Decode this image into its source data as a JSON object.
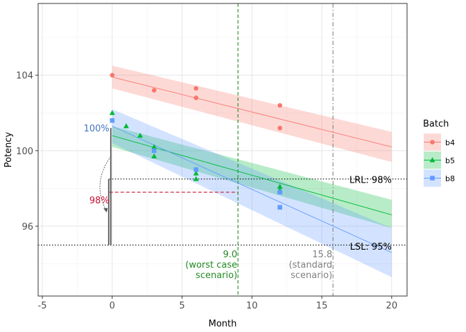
{
  "chart_data": {
    "type": "scatter",
    "xlabel": "Month",
    "ylabel": "Potency",
    "xlim": [
      -5.3,
      21.1
    ],
    "ylim": [
      92.3,
      107.8
    ],
    "x_ticks": [
      -5,
      0,
      5,
      10,
      15,
      20
    ],
    "y_ticks": [
      96,
      100,
      104
    ],
    "grid": true,
    "legend": {
      "title": "Batch",
      "position": "right"
    },
    "series": [
      {
        "name": "b4",
        "color": "#F8766D",
        "marker": "circle",
        "points": [
          [
            0,
            104.0
          ],
          [
            3,
            103.2
          ],
          [
            6,
            103.3
          ],
          [
            6,
            102.8
          ],
          [
            12,
            102.4
          ],
          [
            12,
            101.2
          ]
        ],
        "fit": {
          "x": [
            0,
            20
          ],
          "y": [
            103.9,
            100.2
          ]
        },
        "band": {
          "x": [
            0,
            20
          ],
          "lower": [
            103.3,
            99.4
          ],
          "upper": [
            104.5,
            101.0
          ]
        }
      },
      {
        "name": "b5",
        "color": "#00BA38",
        "marker": "triangle",
        "points": [
          [
            0,
            102.0
          ],
          [
            1,
            101.3
          ],
          [
            2,
            100.8
          ],
          [
            3,
            100.2
          ],
          [
            3,
            99.7
          ],
          [
            6,
            98.8
          ],
          [
            6,
            98.5
          ],
          [
            12,
            98.1
          ],
          [
            12,
            97.9
          ]
        ],
        "fit": {
          "x": [
            0,
            20
          ],
          "y": [
            100.8,
            96.6
          ]
        },
        "band": {
          "x": [
            0,
            20
          ],
          "lower": [
            100.2,
            95.9
          ],
          "upper": [
            101.3,
            97.4
          ]
        }
      },
      {
        "name": "b8",
        "color": "#619CFF",
        "marker": "square",
        "points": [
          [
            0,
            101.6
          ],
          [
            3,
            100.0
          ],
          [
            6,
            99.0
          ],
          [
            12,
            97.8
          ],
          [
            12,
            97.0
          ]
        ],
        "fit": {
          "x": [
            0,
            20
          ],
          "y": [
            101.3,
            94.6
          ]
        },
        "band": {
          "x": [
            0,
            20
          ],
          "lower": [
            100.4,
            93.3
          ],
          "upper": [
            102.2,
            95.9
          ]
        }
      }
    ],
    "reference_lines": [
      {
        "orientation": "horizontal",
        "value": 95,
        "style": "dotted",
        "color": "#000000",
        "x_from": -5.3,
        "label": "LSL:  95%",
        "label_x": 20,
        "label_y": 94.75
      },
      {
        "orientation": "horizontal",
        "value": 98.5,
        "style": "dotted",
        "color": "#000000",
        "x_from": -0.2,
        "label": "LRL:  98%",
        "label_x": 20,
        "label_y": 98.3
      },
      {
        "orientation": "horizontal",
        "value": 97.8,
        "style": "dashed",
        "color": "#C8102E",
        "x_from": -0.2,
        "x_to": 9
      },
      {
        "orientation": "vertical",
        "value": 9.0,
        "style": "dashed",
        "color": "#228B22",
        "label_lines": [
          "9.0",
          "(worst case",
          "scenario)"
        ],
        "label_color": "#228B22"
      },
      {
        "orientation": "vertical",
        "value": 15.8,
        "style": "dashdot",
        "color": "#808080",
        "label_lines": [
          "15.8",
          "(standard",
          "scenario)"
        ],
        "label_color": "#808080"
      }
    ],
    "annotations": [
      {
        "text": "100%",
        "x": -0.2,
        "y": 101.2,
        "color": "#4472C4"
      },
      {
        "text": "98%",
        "x": -0.2,
        "y": 97.4,
        "color": "#C8102E"
      }
    ],
    "vertical_segments": [
      {
        "x": -0.1,
        "y_from": 95,
        "y_to": 101.2,
        "color": "#555555"
      },
      {
        "x": -0.25,
        "y_from": 95,
        "y_to": 98.5,
        "color": "#555555"
      }
    ],
    "curved_arrow": {
      "from": [
        -0.1,
        99.7
      ],
      "to": [
        -0.4,
        96.8
      ],
      "color": "#555555"
    }
  }
}
